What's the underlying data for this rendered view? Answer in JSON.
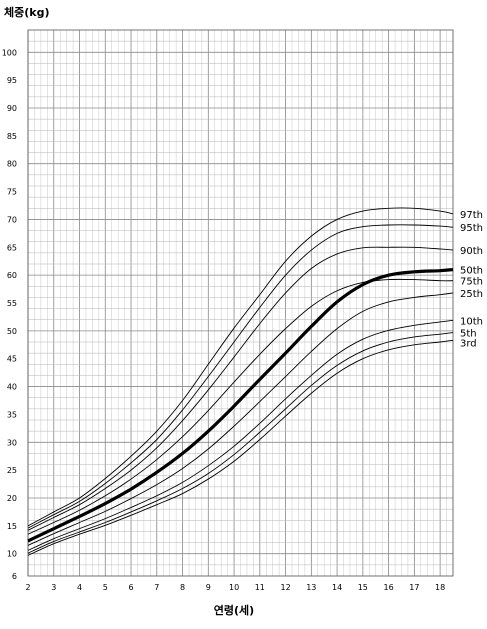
{
  "chart_data": {
    "type": "line",
    "title": "",
    "ylabel": "체중(kg)",
    "xlabel": "연령(세)",
    "xlim": [
      2,
      18.5
    ],
    "ylim": [
      6,
      104
    ],
    "grid": true,
    "x_ticks": [
      2,
      3,
      4,
      5,
      6,
      7,
      8,
      9,
      10,
      11,
      12,
      13,
      14,
      15,
      16,
      17,
      18
    ],
    "y_ticks": [
      6,
      8,
      10,
      12,
      14,
      16,
      18,
      20,
      22,
      24,
      26,
      28,
      30,
      32,
      34,
      36,
      38,
      40,
      42,
      44,
      46,
      48,
      50,
      52,
      54,
      56,
      58,
      60,
      62,
      64,
      66,
      68,
      70,
      72,
      74,
      76,
      78,
      80,
      82,
      84,
      86,
      88,
      90,
      92,
      94,
      96,
      98,
      100,
      102
    ],
    "y_tick_labels": [
      "6",
      "10",
      "15",
      "20",
      "25",
      "30",
      "35",
      "40",
      "45",
      "50",
      "55",
      "60",
      "65",
      "70",
      "75",
      "80",
      "85",
      "90",
      "95",
      "100"
    ],
    "x": [
      2,
      3,
      4,
      5,
      6,
      7,
      8,
      9,
      10,
      11,
      12,
      13,
      14,
      15,
      16,
      17,
      18,
      18.5
    ],
    "series": [
      {
        "name": "97th",
        "values": [
          15.0,
          17.5,
          20.0,
          23.5,
          27.5,
          32.0,
          37.5,
          44.0,
          50.5,
          56.5,
          62.5,
          67.0,
          70.0,
          71.5,
          72.0,
          72.0,
          71.5,
          71.0
        ]
      },
      {
        "name": "95th",
        "values": [
          14.6,
          17.0,
          19.4,
          22.6,
          26.3,
          30.5,
          35.8,
          41.8,
          48.0,
          54.2,
          60.0,
          64.5,
          67.5,
          68.7,
          69.0,
          69.0,
          68.8,
          68.6
        ]
      },
      {
        "name": "90th",
        "values": [
          14.2,
          16.5,
          18.8,
          21.7,
          25.0,
          29.0,
          33.9,
          39.4,
          45.3,
          51.3,
          56.8,
          61.2,
          63.8,
          64.9,
          65.0,
          65.0,
          64.7,
          64.5
        ]
      },
      {
        "name": "75th",
        "values": [
          13.5,
          15.6,
          17.8,
          20.4,
          23.4,
          26.9,
          31.0,
          35.7,
          40.8,
          45.8,
          50.4,
          54.4,
          57.2,
          58.7,
          59.2,
          59.2,
          59.0,
          59.0
        ]
      },
      {
        "name": "50th",
        "values": [
          12.3,
          14.5,
          16.7,
          19.0,
          21.6,
          24.6,
          28.0,
          32.0,
          36.5,
          41.3,
          46.0,
          50.8,
          55.2,
          58.3,
          60.0,
          60.6,
          60.8,
          61.0
        ]
      },
      {
        "name": "25th",
        "values": [
          11.5,
          13.6,
          15.6,
          17.6,
          19.9,
          22.4,
          25.3,
          28.8,
          32.9,
          37.3,
          41.8,
          46.3,
          50.4,
          53.5,
          55.2,
          56.0,
          56.5,
          56.8
        ]
      },
      {
        "name": "10th",
        "values": [
          10.6,
          12.7,
          14.5,
          16.3,
          18.3,
          20.4,
          22.8,
          25.8,
          29.3,
          33.4,
          37.8,
          42.0,
          45.8,
          48.5,
          50.1,
          51.0,
          51.6,
          51.9
        ]
      },
      {
        "name": "5th",
        "values": [
          10.1,
          12.2,
          13.9,
          15.6,
          17.5,
          19.5,
          21.7,
          24.4,
          27.8,
          31.8,
          36.0,
          40.2,
          43.8,
          46.4,
          48.0,
          48.9,
          49.4,
          49.7
        ]
      },
      {
        "name": "3rd",
        "values": [
          9.7,
          11.8,
          13.5,
          15.1,
          16.9,
          18.8,
          20.8,
          23.4,
          26.6,
          30.5,
          34.7,
          38.8,
          42.4,
          45.0,
          46.6,
          47.5,
          48.0,
          48.3
        ]
      }
    ],
    "highlight_series": "50th"
  }
}
